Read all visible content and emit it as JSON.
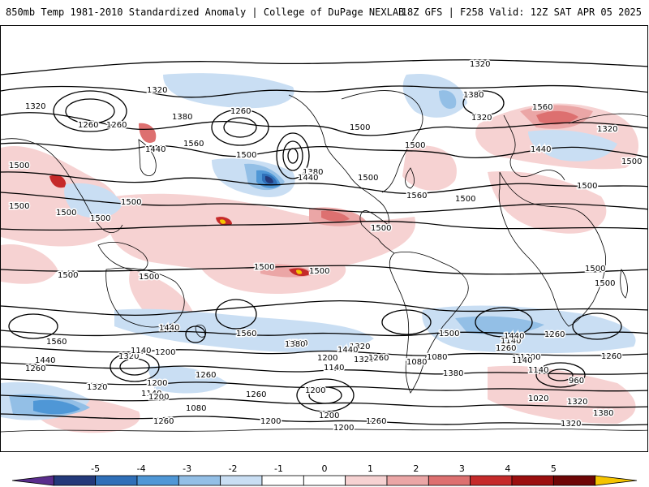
{
  "header": {
    "title_left": "850mb Temp 1981-2010 Standardized Anomaly | College of DuPage NEXLAB",
    "title_right": "18Z GFS | F258 Valid: 12Z SAT APR 05 2025"
  },
  "colorbar": {
    "ticks": [
      "-5",
      "-4",
      "-3",
      "-2",
      "-1",
      "0",
      "1",
      "2",
      "3",
      "4",
      "5"
    ],
    "colors": [
      "#5a2d8c",
      "#23397a",
      "#2f6fb8",
      "#4f97d6",
      "#93bfe6",
      "#c9def3",
      "#ffffff",
      "#ffffff",
      "#f6d2d2",
      "#eba6a6",
      "#dd7070",
      "#c52a2a",
      "#9b0f0f",
      "#6e0606",
      "#f5c400"
    ]
  },
  "map": {
    "contour_labels": [
      "1320",
      "1320",
      "1320",
      "1260",
      "1260",
      "1380",
      "1260",
      "1440",
      "1500",
      "1560",
      "1500",
      "1380",
      "1440",
      "1380",
      "1320",
      "1500",
      "1560",
      "1500",
      "1440",
      "1500",
      "1560",
      "1500",
      "1500",
      "1500",
      "1500",
      "1320",
      "1500",
      "1500",
      "1500",
      "1500",
      "1500",
      "1500",
      "1500",
      "1500",
      "1500",
      "1500",
      "1560",
      "1560",
      "1440",
      "1560",
      "1380",
      "1440",
      "1320",
      "1260",
      "1140",
      "1200",
      "1320",
      "1200",
      "1440",
      "1320",
      "1260",
      "1200",
      "1260",
      "1140",
      "1080",
      "1200",
      "1140",
      "1080",
      "1020",
      "960",
      "1200",
      "1140",
      "1380",
      "1260",
      "1200",
      "1320",
      "1260",
      "1140",
      "1080",
      "1200",
      "1260",
      "1320",
      "1200",
      "1440",
      "1140",
      "1380",
      "1500",
      "1260",
      "1200",
      "1260",
      "1320",
      "1200",
      "1260"
    ]
  }
}
